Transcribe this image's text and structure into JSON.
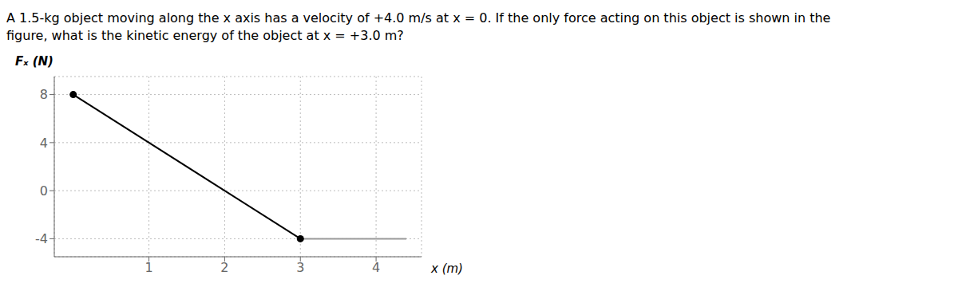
{
  "chart_data": {
    "type": "line",
    "title": "A 1.5-kg object moving along the x axis has a velocity of +4.0 m/s at x = 0. If the only force acting on this object is shown in the\nfigure, what is the kinetic energy of the object at x = +3.0 m?",
    "xlabel": "x (m)",
    "ylabel": "Fₓ (N)",
    "series": [
      {
        "x": [
          0,
          3
        ],
        "values": [
          8,
          -4
        ],
        "color": "#000000"
      },
      {
        "x": [
          3,
          4.4
        ],
        "values": [
          -4,
          -4
        ],
        "color": "#999999"
      },
      {
        "type": "scatter",
        "x": [
          0,
          3
        ],
        "values": [
          8,
          -4
        ],
        "color": "#000000"
      }
    ],
    "xlim": [
      -0.25,
      4.6
    ],
    "ylim": [
      -5.5,
      9.5
    ],
    "xticks": [
      1,
      2,
      3,
      4
    ],
    "yticks": [
      -4,
      0,
      4,
      8
    ],
    "grid": true
  }
}
